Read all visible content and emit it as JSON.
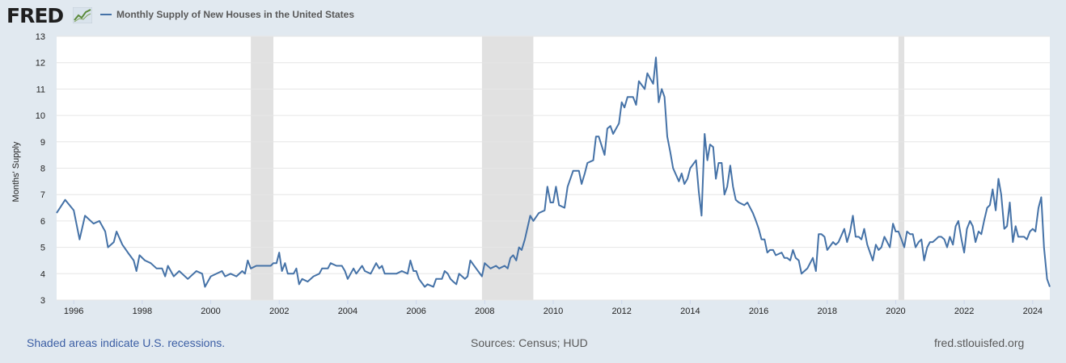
{
  "header": {
    "logo_text": "FRED",
    "legend_label": "Monthly Supply of New Houses in the United States",
    "series_color": "#4572a7"
  },
  "footer": {
    "recession_note": "Shaded areas indicate U.S. recessions.",
    "sources": "Sources: Census; HUD",
    "site": "fred.stlouisfed.org"
  },
  "chart_data": {
    "type": "line",
    "title": "",
    "xlabel": "",
    "ylabel": "Months' Supply",
    "ylim": [
      3,
      13
    ],
    "xlim": [
      1995.5,
      2024.5
    ],
    "y_ticks": [
      3,
      4,
      5,
      6,
      7,
      8,
      9,
      10,
      11,
      12,
      13
    ],
    "x_ticks": [
      "1996",
      "1998",
      "2000",
      "2002",
      "2004",
      "2006",
      "2008",
      "2010",
      "2012",
      "2014",
      "2016",
      "2018",
      "2020",
      "2022",
      "2024"
    ],
    "x_tick_values": [
      1996,
      1998,
      2000,
      2002,
      2004,
      2006,
      2008,
      2010,
      2012,
      2014,
      2016,
      2018,
      2020,
      2022,
      2024
    ],
    "grid": true,
    "recessions": [
      [
        2001.17,
        2001.83
      ],
      [
        2007.92,
        2009.42
      ],
      [
        2020.08,
        2020.25
      ]
    ],
    "recession_color": "#e1e1e1",
    "series": [
      {
        "name": "Monthly Supply of New Houses in the United States",
        "color": "#4572a7",
        "points": [
          [
            1995.5,
            6.3
          ],
          [
            1995.75,
            6.8
          ],
          [
            1996.0,
            6.4
          ],
          [
            1996.17,
            5.3
          ],
          [
            1996.33,
            6.2
          ],
          [
            1996.58,
            5.9
          ],
          [
            1996.75,
            6.0
          ],
          [
            1996.92,
            5.6
          ],
          [
            1997.0,
            5.0
          ],
          [
            1997.17,
            5.2
          ],
          [
            1997.25,
            5.6
          ],
          [
            1997.42,
            5.1
          ],
          [
            1997.58,
            4.8
          ],
          [
            1997.75,
            4.5
          ],
          [
            1997.83,
            4.1
          ],
          [
            1997.92,
            4.7
          ],
          [
            1998.08,
            4.5
          ],
          [
            1998.25,
            4.4
          ],
          [
            1998.42,
            4.2
          ],
          [
            1998.58,
            4.2
          ],
          [
            1998.67,
            3.9
          ],
          [
            1998.75,
            4.3
          ],
          [
            1998.92,
            3.9
          ],
          [
            1999.08,
            4.1
          ],
          [
            1999.33,
            3.8
          ],
          [
            1999.58,
            4.1
          ],
          [
            1999.75,
            4.0
          ],
          [
            1999.83,
            3.5
          ],
          [
            2000.0,
            3.9
          ],
          [
            2000.33,
            4.1
          ],
          [
            2000.42,
            3.9
          ],
          [
            2000.58,
            4.0
          ],
          [
            2000.75,
            3.9
          ],
          [
            2000.92,
            4.1
          ],
          [
            2001.0,
            4.0
          ],
          [
            2001.08,
            4.5
          ],
          [
            2001.17,
            4.2
          ],
          [
            2001.33,
            4.3
          ],
          [
            2001.58,
            4.3
          ],
          [
            2001.75,
            4.3
          ],
          [
            2001.83,
            4.4
          ],
          [
            2001.92,
            4.4
          ],
          [
            2002.0,
            4.8
          ],
          [
            2002.08,
            4.1
          ],
          [
            2002.17,
            4.4
          ],
          [
            2002.25,
            4.0
          ],
          [
            2002.42,
            4.0
          ],
          [
            2002.5,
            4.2
          ],
          [
            2002.58,
            3.6
          ],
          [
            2002.67,
            3.8
          ],
          [
            2002.83,
            3.7
          ],
          [
            2003.0,
            3.9
          ],
          [
            2003.17,
            4.0
          ],
          [
            2003.25,
            4.2
          ],
          [
            2003.42,
            4.2
          ],
          [
            2003.5,
            4.4
          ],
          [
            2003.67,
            4.3
          ],
          [
            2003.83,
            4.3
          ],
          [
            2003.92,
            4.1
          ],
          [
            2004.0,
            3.8
          ],
          [
            2004.17,
            4.2
          ],
          [
            2004.25,
            4.0
          ],
          [
            2004.42,
            4.3
          ],
          [
            2004.5,
            4.1
          ],
          [
            2004.67,
            4.0
          ],
          [
            2004.83,
            4.4
          ],
          [
            2004.92,
            4.2
          ],
          [
            2005.0,
            4.3
          ],
          [
            2005.08,
            4.0
          ],
          [
            2005.25,
            4.0
          ],
          [
            2005.42,
            4.0
          ],
          [
            2005.58,
            4.1
          ],
          [
            2005.75,
            4.0
          ],
          [
            2005.83,
            4.5
          ],
          [
            2005.92,
            4.1
          ],
          [
            2006.0,
            4.1
          ],
          [
            2006.08,
            3.8
          ],
          [
            2006.25,
            3.5
          ],
          [
            2006.33,
            3.6
          ],
          [
            2006.5,
            3.5
          ],
          [
            2006.58,
            3.8
          ],
          [
            2006.75,
            3.8
          ],
          [
            2006.83,
            4.1
          ],
          [
            2006.92,
            4.0
          ],
          [
            2007.0,
            3.8
          ],
          [
            2007.08,
            3.7
          ],
          [
            2007.17,
            3.6
          ],
          [
            2007.25,
            4.0
          ],
          [
            2007.42,
            3.8
          ],
          [
            2007.5,
            3.9
          ],
          [
            2007.58,
            4.5
          ],
          [
            2007.75,
            4.2
          ],
          [
            2007.92,
            3.9
          ],
          [
            2008.0,
            4.4
          ],
          [
            2008.17,
            4.2
          ],
          [
            2008.33,
            4.3
          ],
          [
            2008.42,
            4.2
          ],
          [
            2008.58,
            4.3
          ],
          [
            2008.67,
            4.2
          ],
          [
            2008.75,
            4.6
          ],
          [
            2008.83,
            4.7
          ],
          [
            2008.92,
            4.5
          ],
          [
            2009.0,
            5.0
          ],
          [
            2009.08,
            4.9
          ],
          [
            2009.17,
            5.3
          ],
          [
            2009.33,
            6.2
          ],
          [
            2009.42,
            6.0
          ],
          [
            2009.58,
            6.3
          ],
          [
            2009.75,
            6.4
          ],
          [
            2009.83,
            7.3
          ],
          [
            2009.92,
            6.7
          ],
          [
            2010.0,
            6.7
          ],
          [
            2010.08,
            7.3
          ],
          [
            2010.17,
            6.6
          ],
          [
            2010.33,
            6.5
          ],
          [
            2010.42,
            7.3
          ],
          [
            2010.58,
            7.9
          ],
          [
            2010.75,
            7.9
          ],
          [
            2010.83,
            7.4
          ],
          [
            2010.92,
            7.8
          ],
          [
            2011.0,
            8.2
          ],
          [
            2011.17,
            8.3
          ],
          [
            2011.25,
            9.2
          ],
          [
            2011.33,
            9.2
          ],
          [
            2011.5,
            8.5
          ],
          [
            2011.58,
            9.5
          ],
          [
            2011.67,
            9.6
          ],
          [
            2011.75,
            9.3
          ],
          [
            2011.92,
            9.7
          ],
          [
            2012.0,
            10.5
          ],
          [
            2012.08,
            10.3
          ],
          [
            2012.17,
            10.7
          ],
          [
            2012.33,
            10.7
          ],
          [
            2012.42,
            10.4
          ],
          [
            2012.5,
            11.3
          ],
          [
            2012.67,
            11.0
          ],
          [
            2012.75,
            11.6
          ],
          [
            2012.83,
            11.4
          ],
          [
            2012.92,
            11.2
          ],
          [
            2013.0,
            12.2
          ],
          [
            2013.08,
            10.5
          ],
          [
            2013.17,
            11.0
          ],
          [
            2013.25,
            10.7
          ],
          [
            2013.33,
            9.2
          ],
          [
            2013.42,
            8.6
          ],
          [
            2013.5,
            8.0
          ],
          [
            2013.67,
            7.5
          ],
          [
            2013.75,
            7.8
          ],
          [
            2013.83,
            7.4
          ],
          [
            2013.92,
            7.6
          ],
          [
            2014.0,
            8.0
          ],
          [
            2014.17,
            8.3
          ],
          [
            2014.25,
            7.1
          ],
          [
            2014.33,
            6.2
          ],
          [
            2014.42,
            9.3
          ],
          [
            2014.5,
            8.3
          ],
          [
            2014.58,
            8.9
          ],
          [
            2014.67,
            8.8
          ],
          [
            2014.75,
            7.6
          ],
          [
            2014.83,
            8.2
          ],
          [
            2014.92,
            8.2
          ],
          [
            2015.0,
            7.0
          ],
          [
            2015.08,
            7.3
          ],
          [
            2015.17,
            8.1
          ],
          [
            2015.25,
            7.3
          ],
          [
            2015.33,
            6.8
          ],
          [
            2015.42,
            6.7
          ],
          [
            2015.58,
            6.6
          ],
          [
            2015.67,
            6.7
          ],
          [
            2015.75,
            6.5
          ],
          [
            2015.83,
            6.3
          ],
          [
            2015.92,
            6.0
          ],
          [
            2016.0,
            5.7
          ],
          [
            2016.08,
            5.3
          ],
          [
            2016.17,
            5.3
          ],
          [
            2016.25,
            4.8
          ],
          [
            2016.33,
            4.9
          ],
          [
            2016.42,
            4.9
          ],
          [
            2016.5,
            4.7
          ],
          [
            2016.67,
            4.8
          ],
          [
            2016.75,
            4.6
          ],
          [
            2016.83,
            4.6
          ],
          [
            2016.92,
            4.5
          ],
          [
            2017.0,
            4.9
          ],
          [
            2017.08,
            4.6
          ],
          [
            2017.17,
            4.5
          ],
          [
            2017.25,
            4.0
          ],
          [
            2017.42,
            4.2
          ],
          [
            2017.58,
            4.6
          ],
          [
            2017.67,
            4.1
          ],
          [
            2017.75,
            5.5
          ],
          [
            2017.83,
            5.5
          ],
          [
            2017.92,
            5.4
          ],
          [
            2018.0,
            4.9
          ],
          [
            2018.17,
            5.2
          ],
          [
            2018.25,
            5.1
          ],
          [
            2018.33,
            5.2
          ],
          [
            2018.5,
            5.7
          ],
          [
            2018.58,
            5.2
          ],
          [
            2018.67,
            5.6
          ],
          [
            2018.75,
            6.2
          ],
          [
            2018.83,
            5.4
          ],
          [
            2018.92,
            5.4
          ],
          [
            2019.0,
            5.3
          ],
          [
            2019.08,
            5.7
          ],
          [
            2019.17,
            5.1
          ],
          [
            2019.33,
            4.5
          ],
          [
            2019.42,
            5.1
          ],
          [
            2019.5,
            4.9
          ],
          [
            2019.58,
            5.0
          ],
          [
            2019.67,
            5.4
          ],
          [
            2019.75,
            5.2
          ],
          [
            2019.83,
            5.0
          ],
          [
            2019.92,
            5.9
          ],
          [
            2020.0,
            5.6
          ],
          [
            2020.08,
            5.6
          ],
          [
            2020.17,
            5.3
          ],
          [
            2020.25,
            5.0
          ],
          [
            2020.33,
            5.6
          ],
          [
            2020.42,
            5.5
          ],
          [
            2020.5,
            5.5
          ],
          [
            2020.58,
            5.0
          ],
          [
            2020.67,
            5.2
          ],
          [
            2020.75,
            5.3
          ],
          [
            2020.83,
            4.5
          ],
          [
            2020.92,
            5.0
          ],
          [
            2021.0,
            5.2
          ],
          [
            2021.08,
            5.2
          ],
          [
            2021.17,
            5.3
          ],
          [
            2021.25,
            5.4
          ],
          [
            2021.33,
            5.4
          ],
          [
            2021.42,
            5.3
          ],
          [
            2021.5,
            5.0
          ],
          [
            2021.58,
            5.4
          ],
          [
            2021.67,
            5.1
          ],
          [
            2021.75,
            5.8
          ],
          [
            2021.83,
            6.0
          ],
          [
            2021.92,
            5.3
          ],
          [
            2022.0,
            4.8
          ],
          [
            2022.08,
            5.7
          ],
          [
            2022.17,
            6.0
          ],
          [
            2022.25,
            5.8
          ],
          [
            2022.33,
            5.2
          ],
          [
            2022.42,
            5.6
          ],
          [
            2022.5,
            5.5
          ],
          [
            2022.58,
            6.0
          ],
          [
            2022.67,
            6.5
          ],
          [
            2022.75,
            6.6
          ],
          [
            2022.83,
            7.2
          ],
          [
            2022.92,
            6.4
          ],
          [
            2023.0,
            7.6
          ],
          [
            2023.08,
            7.0
          ],
          [
            2023.17,
            5.7
          ],
          [
            2023.25,
            5.8
          ],
          [
            2023.33,
            6.7
          ],
          [
            2023.42,
            5.2
          ],
          [
            2023.5,
            5.8
          ],
          [
            2023.58,
            5.4
          ],
          [
            2023.67,
            5.4
          ],
          [
            2023.75,
            5.4
          ],
          [
            2023.83,
            5.3
          ],
          [
            2023.92,
            5.6
          ],
          [
            2024.0,
            5.7
          ],
          [
            2024.08,
            5.6
          ],
          [
            2024.17,
            6.5
          ],
          [
            2024.25,
            6.9
          ],
          [
            2024.33,
            5.0
          ],
          [
            2024.42,
            3.8
          ],
          [
            2024.5,
            3.5
          ]
        ]
      }
    ]
  }
}
